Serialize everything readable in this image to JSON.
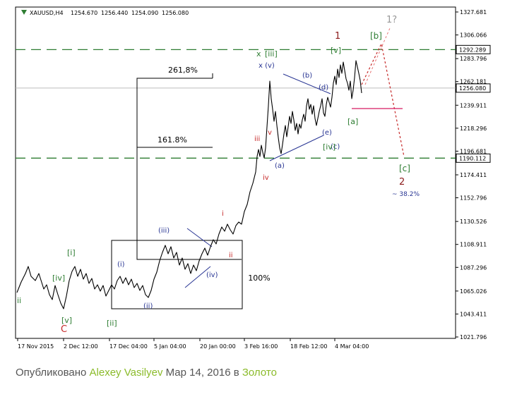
{
  "chart_data": {
    "type": "line",
    "title": "XAUUSD,H4",
    "ohlc": {
      "open": "1254.670",
      "high": "1256.440",
      "low": "1254.090",
      "close": "1256.080"
    },
    "x_ticks": [
      "17 Nov 2015",
      "2 Dec 12:00",
      "17 Dec 04:00",
      "5 Jan 04:00",
      "20 Jan 00:00",
      "3 Feb 16:00",
      "18 Feb 12:00",
      "4 Mar 04:00"
    ],
    "y_ticks": [
      "1327.681",
      "1306.066",
      "1283.796",
      "1262.181",
      "1239.911",
      "1218.296",
      "1196.681",
      "1174.411",
      "1152.796",
      "1130.526",
      "1108.911",
      "1087.296",
      "1065.026",
      "1043.411",
      "1021.796"
    ],
    "ylim": [
      1021.796,
      1327.681
    ],
    "price_levels": [
      {
        "value": 1292.289,
        "label": "1292.289"
      },
      {
        "value": 1190.112,
        "label": "1190.112"
      }
    ],
    "current_price": {
      "value": 1256.08,
      "label": "1256.080"
    },
    "fib_levels": [
      {
        "label": "261,8%"
      },
      {
        "label": "161.8%"
      },
      {
        "label": "100%"
      }
    ],
    "wave_labels": [
      {
        "text": "ii",
        "color": "#2e7d32"
      },
      {
        "text": "[iv]",
        "color": "#2e7d32"
      },
      {
        "text": "[i]",
        "color": "#2e7d32"
      },
      {
        "text": "[v]",
        "color": "#2e7d32"
      },
      {
        "text": "C",
        "color": "#c62828"
      },
      {
        "text": "(i)",
        "color": "#283593"
      },
      {
        "text": "[ii]",
        "color": "#2e7d32"
      },
      {
        "text": "(ii)",
        "color": "#283593"
      },
      {
        "text": "(iii)",
        "color": "#283593"
      },
      {
        "text": "(iv)",
        "color": "#283593"
      },
      {
        "text": "i",
        "color": "#c62828"
      },
      {
        "text": "ii",
        "color": "#c62828"
      },
      {
        "text": "iii",
        "color": "#c62828"
      },
      {
        "text": "iv",
        "color": "#c62828"
      },
      {
        "text": "v",
        "color": "#c62828"
      },
      {
        "text": "x",
        "color": "#2e7d32"
      },
      {
        "text": "[iii]",
        "color": "#2e7d32"
      },
      {
        "text": "x (v)",
        "color": "#283593"
      },
      {
        "text": "(a)",
        "color": "#283593"
      },
      {
        "text": "(b)",
        "color": "#283593"
      },
      {
        "text": "(c)",
        "color": "#283593"
      },
      {
        "text": "(d)",
        "color": "#283593"
      },
      {
        "text": "(e)",
        "color": "#283593"
      },
      {
        "text": "[iv]",
        "color": "#2e7d32"
      },
      {
        "text": "[v]",
        "color": "#2e7d32"
      },
      {
        "text": "1",
        "color": "#8b1a1a"
      },
      {
        "text": "[a]",
        "color": "#2e7d32"
      },
      {
        "text": "[b]",
        "color": "#2e7d32"
      },
      {
        "text": "1?",
        "color": "#999999"
      },
      {
        "text": "[c]",
        "color": "#2e7d32"
      },
      {
        "text": "2",
        "color": "#8b1a1a"
      },
      {
        "text": "~ 38.2%",
        "color": "#283593"
      }
    ]
  },
  "footer": {
    "prefix": "Опубликовано ",
    "author": "Alexey Vasilyev",
    "middle": " Мар 14, 2016 в ",
    "category": "Золото"
  },
  "colors": {
    "up_arrow": "#2e7d32",
    "dashed_green": "#2e7d32",
    "projection": "#c62828",
    "magenta": "#d81b60"
  }
}
